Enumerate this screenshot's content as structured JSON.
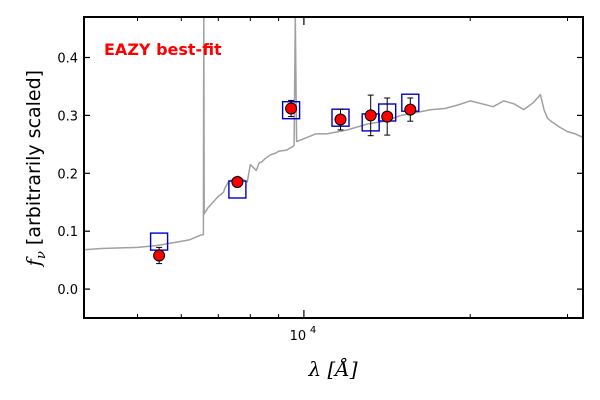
{
  "chart_data": {
    "type": "scatter",
    "title": "",
    "annotation": {
      "text": "EAZY best-fit",
      "color": "#ff0000"
    },
    "xlabel": "λ [Å]",
    "ylabel_math": "f",
    "ylabel_sub": "ν",
    "ylabel_text": "[arbitrarily scaled]",
    "xscale": "log",
    "xlim": [
      4000,
      32000
    ],
    "ylim": [
      -0.05,
      0.47
    ],
    "yticks": [
      0.0,
      0.1,
      0.2,
      0.3,
      0.4
    ],
    "ytick_labels": [
      "0.0",
      "0.1",
      "0.2",
      "0.3",
      "0.4"
    ],
    "xticks_major": [
      10000
    ],
    "xtick_label_base": "10",
    "xtick_label_exp": "4",
    "xticks_minor": [
      5000,
      6000,
      7000,
      8000,
      9000,
      20000,
      30000
    ],
    "series": [
      {
        "name": "EAZY best-fit template",
        "kind": "line",
        "color": "#a0a0a0",
        "x": [
          4000,
          4300,
          4600,
          5000,
          5400,
          5800,
          6200,
          6500,
          6580,
          6590,
          6600,
          6700,
          7000,
          7150,
          7200,
          7300,
          7600,
          7900,
          8000,
          8200,
          8300,
          8400,
          8500,
          8700,
          8900,
          9000,
          9300,
          9500,
          9600,
          9650,
          9700,
          9900,
          10500,
          11000,
          12000,
          13000,
          14000,
          15000,
          16000,
          17000,
          18000,
          19000,
          20000,
          21000,
          22000,
          23000,
          24000,
          25000,
          26000,
          26800,
          27200,
          27600,
          28000,
          29000,
          30000,
          31000,
          32000
        ],
        "y": [
          0.068,
          0.07,
          0.071,
          0.072,
          0.075,
          0.08,
          0.085,
          0.093,
          0.094,
          0.47,
          0.13,
          0.14,
          0.16,
          0.167,
          0.175,
          0.185,
          0.195,
          0.185,
          0.215,
          0.205,
          0.218,
          0.22,
          0.225,
          0.232,
          0.235,
          0.238,
          0.24,
          0.245,
          0.248,
          0.47,
          0.255,
          0.258,
          0.268,
          0.268,
          0.275,
          0.285,
          0.29,
          0.3,
          0.305,
          0.31,
          0.312,
          0.318,
          0.325,
          0.32,
          0.315,
          0.325,
          0.32,
          0.31,
          0.322,
          0.336,
          0.31,
          0.295,
          0.29,
          0.28,
          0.272,
          0.268,
          0.262
        ]
      },
      {
        "name": "Template synthetic photometry",
        "kind": "open-square",
        "color": "#0000cc",
        "x": [
          5470,
          7580,
          9480,
          11650,
          13210,
          14150,
          15580
        ],
        "y": [
          0.082,
          0.172,
          0.309,
          0.296,
          0.288,
          0.305,
          0.322
        ]
      },
      {
        "name": "Observed photometry",
        "kind": "point-errorbar",
        "color": "#ff0000",
        "x": [
          5470,
          7580,
          9480,
          11650,
          13210,
          14150,
          15580
        ],
        "y": [
          0.058,
          0.185,
          0.312,
          0.293,
          0.3,
          0.298,
          0.31
        ],
        "yerr": [
          0.014,
          0.008,
          0.014,
          0.018,
          0.035,
          0.032,
          0.02
        ]
      }
    ]
  }
}
